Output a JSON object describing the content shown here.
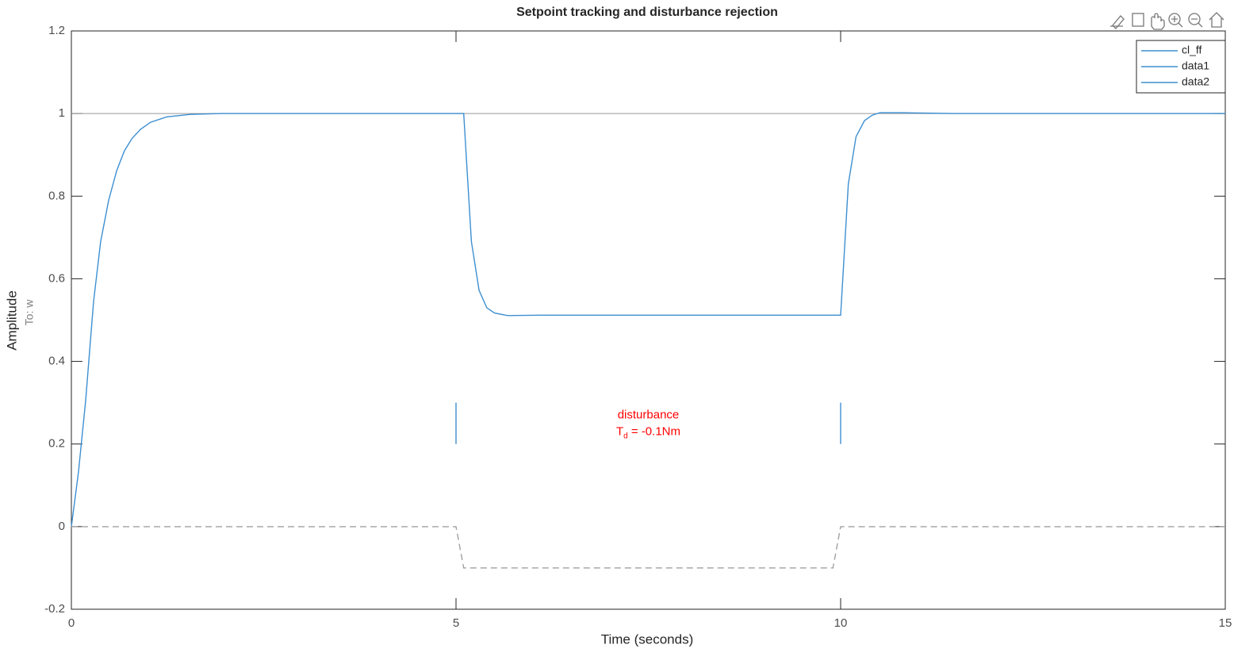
{
  "chart_data": {
    "type": "line",
    "title": "Setpoint tracking and disturbance rejection",
    "xlabel": "Time (seconds)",
    "ylabel": "Amplitude",
    "ylabel_sub": "To: w",
    "xlim": [
      0,
      15
    ],
    "ylim": [
      -0.2,
      1.2
    ],
    "xticks": [
      0,
      5,
      10,
      15
    ],
    "yticks": [
      -0.2,
      0,
      0.2,
      0.4,
      0.6,
      0.8,
      1,
      1.2
    ],
    "grid": false,
    "legend": "upper right",
    "reference_line": 1,
    "series": [
      {
        "name": "cl_ff",
        "color": "#3d8fd1",
        "dash": false,
        "x": [
          0,
          0.093,
          0.186,
          0.289,
          0.38,
          0.485,
          0.59,
          0.69,
          0.79,
          0.9,
          1.03,
          1.24,
          1.55,
          1.96,
          5.0,
          5.1,
          5.2,
          5.3,
          5.4,
          5.5,
          5.67,
          6.09,
          10.0,
          10.1,
          10.2,
          10.31,
          10.41,
          10.51,
          10.82,
          11.45,
          15
        ],
        "values": [
          0,
          0.133,
          0.305,
          0.545,
          0.69,
          0.79,
          0.862,
          0.91,
          0.94,
          0.962,
          0.979,
          0.992,
          0.998,
          1,
          1,
          1,
          0.69,
          0.572,
          0.53,
          0.517,
          0.511,
          0.512,
          0.512,
          0.83,
          0.944,
          0.983,
          0.996,
          1.002,
          1.002,
          1,
          1
        ]
      },
      {
        "name": "data1",
        "color": "#3d8fd1",
        "dash": false,
        "x": [
          5,
          5
        ],
        "values": [
          0.2,
          0.3
        ]
      },
      {
        "name": "data2",
        "color": "#3d8fd1",
        "dash": false,
        "x": [
          10,
          10
        ],
        "values": [
          0.2,
          0.3
        ]
      },
      {
        "color": "#a0a0a0",
        "dash": true,
        "x": [
          0,
          5,
          5.1,
          9.9,
          10,
          15
        ],
        "values": [
          0,
          0,
          -0.1,
          -0.1,
          0,
          0
        ]
      }
    ],
    "annotation": {
      "color": "#ff0000",
      "x": 7.5,
      "y": 0.25,
      "line1": "disturbance",
      "main": "T",
      "sub": "d",
      "rest": " = -0.1Nm"
    }
  }
}
